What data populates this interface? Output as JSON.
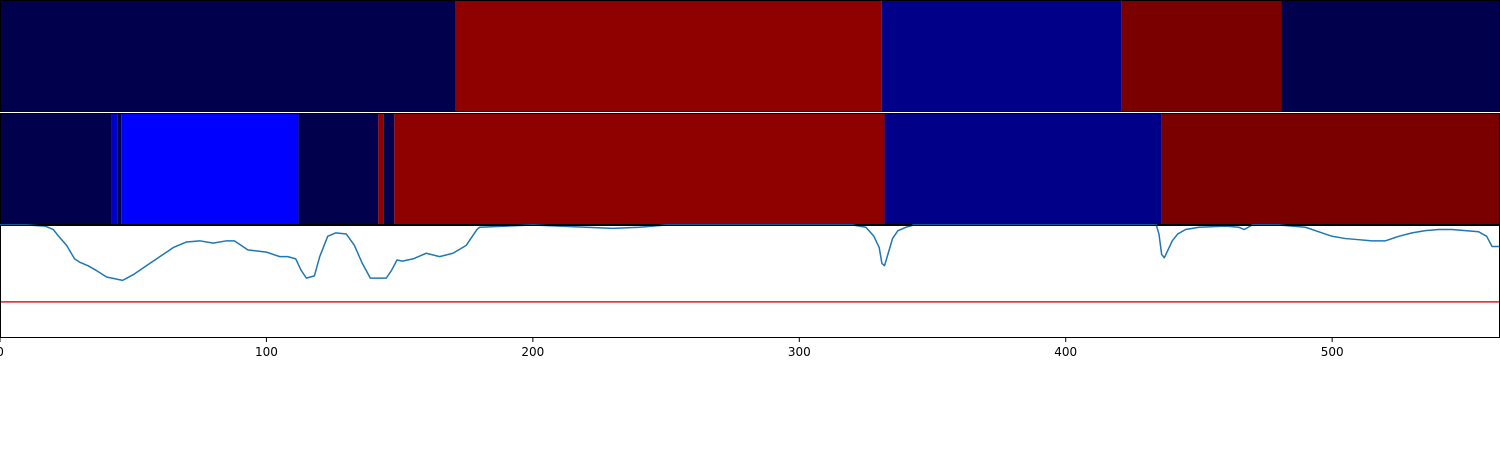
{
  "chart_data": {
    "type": "line",
    "x_range": [
      0,
      563
    ],
    "x_ticks": [
      0,
      100,
      200,
      300,
      400,
      500
    ],
    "segment_bands": [
      {
        "segments": [
          {
            "start": 0,
            "end": 171,
            "color": "#00004c"
          },
          {
            "start": 171,
            "end": 331,
            "color": "#8f0000"
          },
          {
            "start": 331,
            "end": 421,
            "color": "#000089"
          },
          {
            "start": 421,
            "end": 481,
            "color": "#7a0000"
          },
          {
            "start": 481,
            "end": 563,
            "color": "#00004c"
          }
        ]
      },
      {
        "segments": [
          {
            "start": 0,
            "end": 42,
            "color": "#00004c"
          },
          {
            "start": 42,
            "end": 44,
            "color": "#0000c8"
          },
          {
            "start": 44,
            "end": 45.5,
            "color": "#00004c"
          },
          {
            "start": 45.5,
            "end": 112,
            "color": "#0000ff"
          },
          {
            "start": 112,
            "end": 142,
            "color": "#00004c"
          },
          {
            "start": 142,
            "end": 144,
            "color": "#8f0000"
          },
          {
            "start": 144,
            "end": 148,
            "color": "#00004c"
          },
          {
            "start": 148,
            "end": 332,
            "color": "#8f0000"
          },
          {
            "start": 332,
            "end": 436,
            "color": "#000089"
          },
          {
            "start": 436,
            "end": 563,
            "color": "#7a0000"
          }
        ]
      }
    ],
    "line_ylim": [
      0,
      1
    ],
    "series": [
      {
        "color": "#1f77b4",
        "x": [
          0,
          10,
          17,
          20,
          22,
          25,
          28,
          30,
          33,
          36,
          40,
          44,
          46,
          50,
          55,
          60,
          65,
          70,
          75,
          80,
          85,
          88,
          93,
          100,
          105,
          108,
          111,
          113,
          115,
          118,
          120,
          123,
          126,
          130,
          133,
          136,
          139,
          141,
          142,
          145,
          147,
          149,
          151,
          155,
          160,
          165,
          170,
          175,
          179,
          180,
          190,
          200,
          210,
          220,
          230,
          240,
          250,
          260,
          270,
          280,
          290,
          300,
          310,
          320,
          325,
          328,
          330,
          331,
          332,
          333,
          335,
          337,
          340,
          343,
          350,
          360,
          370,
          380,
          390,
          400,
          410,
          420,
          430,
          434,
          435,
          436,
          437,
          438,
          440,
          442,
          445,
          450,
          460,
          465,
          467,
          470,
          475,
          480,
          485,
          490,
          495,
          500,
          505,
          510,
          515,
          520,
          525,
          530,
          535,
          540,
          545,
          550,
          555,
          558,
          560,
          563
        ],
        "y": [
          1.0,
          1.0,
          0.99,
          0.96,
          0.9,
          0.82,
          0.7,
          0.67,
          0.64,
          0.6,
          0.54,
          0.52,
          0.51,
          0.56,
          0.64,
          0.72,
          0.8,
          0.85,
          0.86,
          0.84,
          0.86,
          0.86,
          0.78,
          0.76,
          0.72,
          0.72,
          0.7,
          0.6,
          0.53,
          0.55,
          0.72,
          0.9,
          0.93,
          0.92,
          0.82,
          0.66,
          0.53,
          0.53,
          0.53,
          0.53,
          0.6,
          0.69,
          0.68,
          0.7,
          0.75,
          0.72,
          0.75,
          0.82,
          0.96,
          0.98,
          0.99,
          1.0,
          0.99,
          0.98,
          0.97,
          0.98,
          1.0,
          1.0,
          1.0,
          1.0,
          1.0,
          1.0,
          1.0,
          1.0,
          0.98,
          0.9,
          0.8,
          0.66,
          0.64,
          0.72,
          0.88,
          0.95,
          0.98,
          1.0,
          1.0,
          1.0,
          1.0,
          1.0,
          1.0,
          1.0,
          1.0,
          1.0,
          1.0,
          1.0,
          0.92,
          0.74,
          0.71,
          0.76,
          0.86,
          0.92,
          0.96,
          0.98,
          0.99,
          0.98,
          0.96,
          1.0,
          1.0,
          1.0,
          0.99,
          0.98,
          0.94,
          0.9,
          0.88,
          0.87,
          0.86,
          0.86,
          0.9,
          0.93,
          0.95,
          0.96,
          0.96,
          0.95,
          0.94,
          0.9,
          0.81,
          0.81
        ]
      }
    ],
    "hlines": [
      {
        "y": 0.32,
        "color": "#e31a1c"
      }
    ]
  }
}
